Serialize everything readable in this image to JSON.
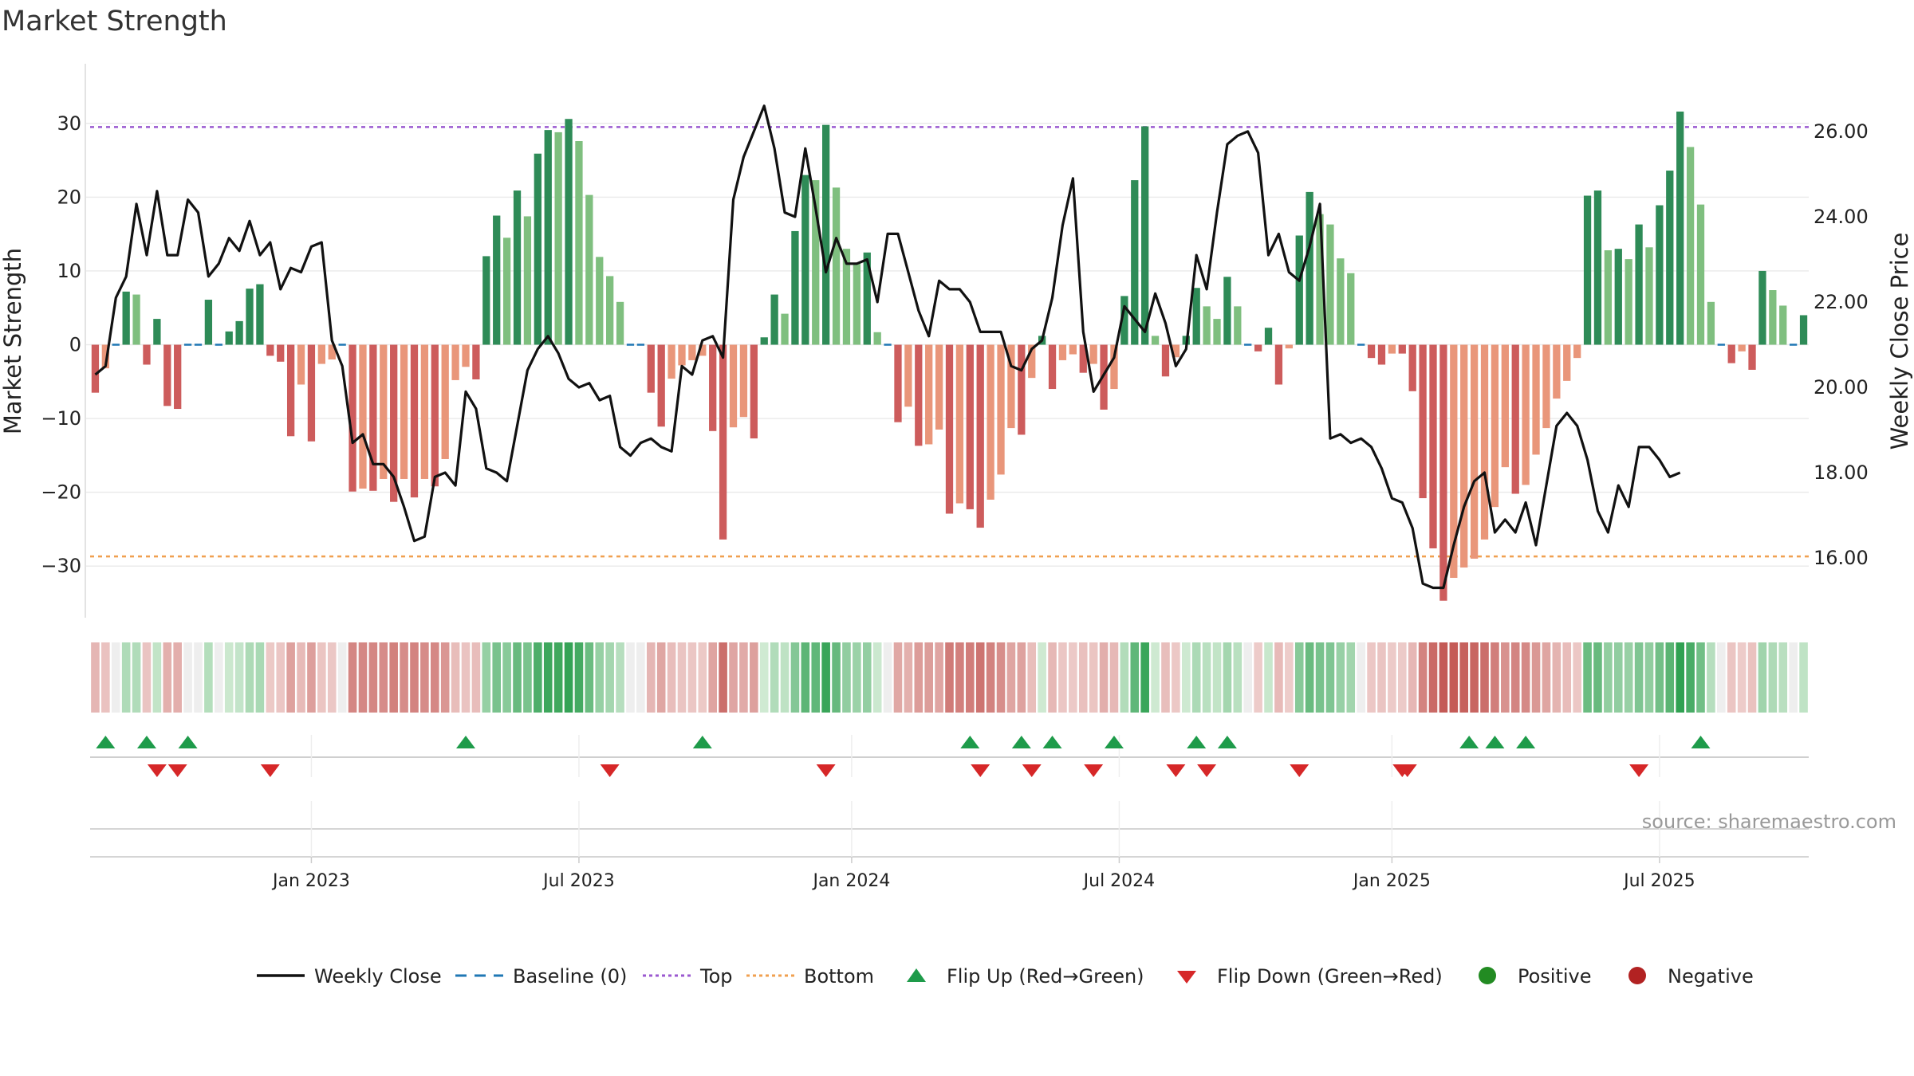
{
  "chart_data": {
    "type": "bar",
    "title": "Market Strength",
    "ylabel": "Market Strength",
    "ylabel_right": "Weekly Close Price",
    "xlabel": "",
    "ylim": [
      -37,
      37
    ],
    "ylim_right": [
      14.6,
      27.4
    ],
    "yticks": [
      30,
      20,
      10,
      0,
      -10,
      -20,
      -30
    ],
    "ytick_labels": [
      "30",
      "20",
      "10",
      "0",
      "−10",
      "−20",
      "−30"
    ],
    "yticks_right": [
      26,
      24,
      22,
      20,
      18,
      16
    ],
    "ytick_labels_right": [
      "26.00",
      "24.00",
      "22.00",
      "20.00",
      "18.00",
      "16.00"
    ],
    "x_ticks": [
      {
        "label": "Jan 2023",
        "week": 21.5
      },
      {
        "label": "Jul 2023",
        "week": 47.5
      },
      {
        "label": "Jan 2024",
        "week": 74
      },
      {
        "label": "Jul 2024",
        "week": 100
      },
      {
        "label": "Jan 2025",
        "week": 126.5
      },
      {
        "label": "Jul 2025",
        "week": 152.5
      }
    ],
    "top_threshold": 29.5,
    "bottom_threshold": -28.7,
    "baseline": 0,
    "strength": [
      -6.5,
      -3.2,
      0,
      7.2,
      6.8,
      -2.7,
      3.5,
      -8.3,
      -8.7,
      0,
      0,
      6.1,
      0,
      1.8,
      3.2,
      7.6,
      8.2,
      -1.5,
      -2.3,
      -12.4,
      -5.4,
      -13.1,
      -2.6,
      -2,
      0,
      -19.9,
      -19.5,
      -19.8,
      -18.2,
      -21.3,
      -18.2,
      -20.7,
      -18.2,
      -19.2,
      -15.5,
      -4.8,
      -3,
      -4.7,
      12,
      17.5,
      14.5,
      20.9,
      17.4,
      25.9,
      29.1,
      28.8,
      30.6,
      27.6,
      20.3,
      11.9,
      9.3,
      5.8,
      0,
      0,
      -6.5,
      -11.1,
      -4.6,
      -2.8,
      -2.1,
      -1.5,
      -11.7,
      -26.4,
      -11.2,
      -9.8,
      -12.7,
      1,
      6.8,
      4.2,
      15.4,
      23,
      22.3,
      29.8,
      21.3,
      13,
      11,
      12.5,
      1.7,
      0,
      -10.5,
      -8.4,
      -13.7,
      -13.5,
      -11.5,
      -22.9,
      -21.5,
      -22.3,
      -24.8,
      -21,
      -17.6,
      -11.3,
      -12.2,
      -4.5,
      1.2,
      -6,
      -2.1,
      -1.3,
      -3.8,
      -2.6,
      -8.8,
      -6,
      6.6,
      22.3,
      29.6,
      1.2,
      -4.3,
      -1.7,
      1.2,
      7.7,
      5.2,
      3.5,
      9.2,
      5.2,
      0,
      -0.9,
      2.3,
      -5.4,
      -0.5,
      14.8,
      20.7,
      17.7,
      16.3,
      11.7,
      9.7,
      0,
      -1.8,
      -2.7,
      -1.2,
      -1.2,
      -6.3,
      -20.8,
      -27.6,
      -34.7,
      -31.6,
      -30.2,
      -29,
      -26.4,
      -22,
      -16.6,
      -20.2,
      -19,
      -14.9,
      -11.3,
      -7.3,
      -4.9,
      -1.8,
      20.2,
      20.9,
      12.8,
      13,
      11.6,
      16.3,
      13.2,
      18.9,
      23.6,
      31.6,
      26.8,
      19,
      5.8,
      0,
      -2.5,
      -0.9,
      -3.4,
      10,
      7.4,
      5.3,
      0,
      4
    ],
    "weekly_close": [
      20.3,
      20.5,
      22.1,
      22.6,
      24.3,
      23.1,
      24.6,
      23.1,
      23.1,
      24.4,
      24.1,
      22.6,
      22.9,
      23.5,
      23.2,
      23.9,
      23.1,
      23.4,
      22.3,
      22.8,
      22.7,
      23.3,
      23.4,
      21.1,
      20.5,
      18.7,
      18.9,
      18.2,
      18.2,
      17.9,
      17.2,
      16.4,
      16.5,
      17.9,
      18,
      17.7,
      19.9,
      19.5,
      18.1,
      18,
      17.8,
      19.1,
      20.4,
      20.9,
      21.2,
      20.8,
      20.2,
      20,
      20.1,
      19.7,
      19.8,
      18.6,
      18.4,
      18.7,
      18.8,
      18.6,
      18.5,
      20.5,
      20.3,
      21.1,
      21.2,
      20.7,
      24.4,
      25.4,
      26,
      26.6,
      25.6,
      24.1,
      24,
      25.6,
      24.2,
      22.7,
      23.5,
      22.9,
      22.9,
      23,
      22,
      23.6,
      23.6,
      22.7,
      21.8,
      21.2,
      22.5,
      22.3,
      22.3,
      22,
      21.3,
      21.3,
      21.3,
      20.5,
      20.4,
      20.9,
      21.1,
      22.1,
      23.8,
      24.9,
      21.3,
      19.9,
      20.3,
      20.7,
      21.9,
      21.6,
      21.3,
      22.2,
      21.5,
      20.5,
      20.9,
      23.1,
      22.3,
      24.1,
      25.7,
      25.9,
      26,
      25.5,
      23.1,
      23.6,
      22.7,
      22.5,
      23.3,
      24.3,
      18.8,
      18.9,
      18.7,
      18.8,
      18.6,
      18.1,
      17.4,
      17.3,
      16.7,
      15.4,
      15.3,
      15.3,
      16.3,
      17.2,
      17.8,
      18,
      16.6,
      16.9,
      16.6,
      17.3,
      16.3,
      17.7,
      19.1,
      19.4,
      19.1,
      18.3,
      17.1,
      16.6,
      17.7,
      17.2,
      18.6,
      18.6,
      18.3,
      17.9,
      18
    ],
    "flip_up_weeks": [
      1.5,
      5.5,
      9.5,
      36.5,
      59.5,
      85.5,
      90.5,
      93.5,
      99.5,
      107.5,
      110.5,
      134,
      136.5,
      139.5,
      156.5
    ],
    "flip_down_weeks": [
      6.5,
      8.5,
      17.5,
      50.5,
      71.5,
      86.5,
      91.5,
      97.5,
      105.5,
      108.5,
      117.5,
      128,
      127.5,
      150.5
    ],
    "legend": [
      {
        "label": "Weekly Close",
        "kind": "line",
        "color": "#111111"
      },
      {
        "label": "Baseline (0)",
        "kind": "dash",
        "color": "#1f77b4"
      },
      {
        "label": "Top",
        "kind": "dot",
        "color": "#9b59d0"
      },
      {
        "label": "Bottom",
        "kind": "dot",
        "color": "#f0a050"
      },
      {
        "label": "Flip Up (Red→Green)",
        "kind": "tri-up",
        "color": "#1e9b4a"
      },
      {
        "label": "Flip Down (Green→Red)",
        "kind": "tri-down",
        "color": "#d62728"
      },
      {
        "label": "Positive",
        "kind": "circle",
        "color": "#228b22"
      },
      {
        "label": "Negative",
        "kind": "circle",
        "color": "#b22222"
      }
    ],
    "source": "source: sharemaestro.com"
  },
  "colors": {
    "pos_strong": "#2e8b57",
    "pos_light": "#7fbf7f",
    "neg_strong": "#cd5c5c",
    "neg_light": "#e9967a",
    "grid": "#ebebeb"
  }
}
